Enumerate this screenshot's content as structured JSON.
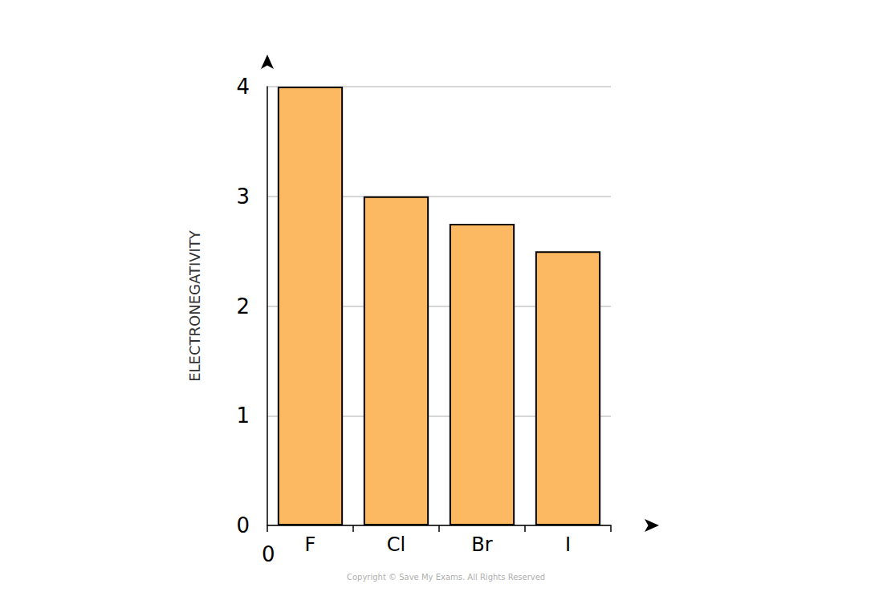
{
  "chart_data": {
    "type": "bar",
    "y_label": "ELECTRONEGATIVITY",
    "categories": [
      "F",
      "Cl",
      "Br",
      "I"
    ],
    "values": [
      4.0,
      3.0,
      2.75,
      2.5
    ],
    "color": "#fdb862",
    "ylim": [
      0,
      4
    ],
    "yticks": [
      0,
      1,
      2,
      3,
      4
    ],
    "grid": true,
    "annotations": [
      "0",
      "Copyright © Save My Exams. All Rights Reserved"
    ]
  }
}
